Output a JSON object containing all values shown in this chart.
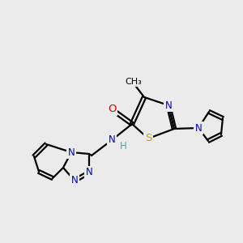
{
  "bg_color": "#ebebeb",
  "atom_colors": {
    "C": "#000000",
    "N": "#0000cc",
    "O": "#cc0000",
    "S": "#bbaa00",
    "H": "#44aaaa"
  },
  "bond_color": "#000000",
  "bond_lw": 1.6,
  "font_size": 8.5,
  "figsize": [
    3.0,
    3.0
  ],
  "dpi": 100
}
